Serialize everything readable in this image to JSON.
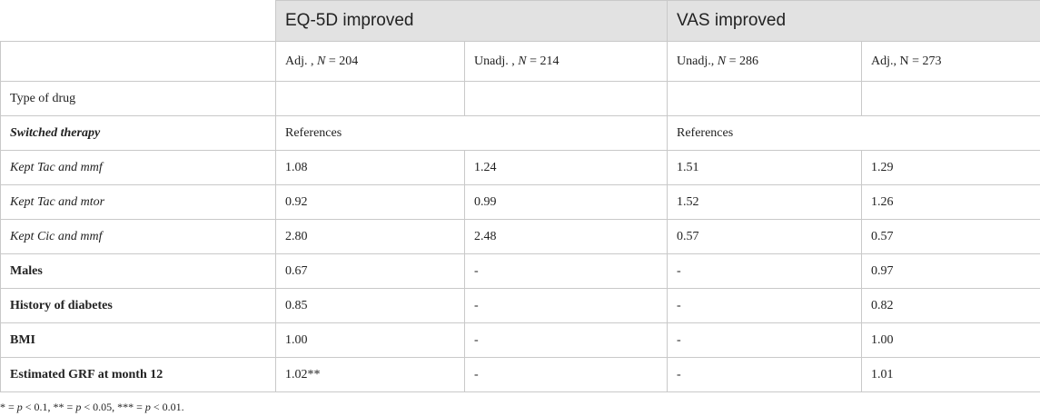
{
  "groups": [
    "EQ-5D improved",
    "VAS improved"
  ],
  "subheaders": [
    {
      "pre": "Adj. , ",
      "n": "N",
      "post": " = 204"
    },
    {
      "pre": "Unadj. , ",
      "n": "N",
      "post": " = 214"
    },
    {
      "pre": "Unadj., ",
      "n": "N",
      "post": " = 286"
    },
    {
      "pre": "Adj., N = 273",
      "n": "",
      "post": ""
    }
  ],
  "rows": [
    {
      "label": "Type of drug",
      "style": "normal",
      "cells": [
        "",
        "",
        "",
        ""
      ]
    },
    {
      "label": "Switched therapy",
      "style": "bold-italic",
      "span": true,
      "cells": [
        "References",
        "References"
      ]
    },
    {
      "label": "Kept Tac and mmf",
      "style": "italic",
      "cells": [
        "1.08",
        "1.24",
        "1.51",
        "1.29"
      ]
    },
    {
      "label": "Kept Tac and mtor",
      "style": "italic",
      "cells": [
        "0.92",
        "0.99",
        "1.52",
        "1.26"
      ]
    },
    {
      "label": "Kept Cic and mmf",
      "style": "italic",
      "cells": [
        "2.80",
        "2.48",
        "0.57",
        "0.57"
      ]
    },
    {
      "label": "Males",
      "style": "bold",
      "cells": [
        "0.67",
        "-",
        "-",
        "0.97"
      ]
    },
    {
      "label": "History of diabetes",
      "style": "bold",
      "cells": [
        "0.85",
        "-",
        "-",
        "0.82"
      ]
    },
    {
      "label": "BMI",
      "style": "bold",
      "cells": [
        "1.00",
        "-",
        "-",
        "1.00"
      ]
    },
    {
      "label": "Estimated GRF at month 12",
      "style": "bold",
      "cells": [
        "1.02**",
        "-",
        "-",
        "1.01"
      ]
    }
  ],
  "footnote": [
    {
      "t": "* = ",
      "i": false
    },
    {
      "t": "p",
      "i": true
    },
    {
      "t": " < 0.1, ** = ",
      "i": false
    },
    {
      "t": "p",
      "i": true
    },
    {
      "t": " < 0.05, *** = ",
      "i": false
    },
    {
      "t": "p",
      "i": true
    },
    {
      "t": " < 0.01.",
      "i": false
    }
  ]
}
